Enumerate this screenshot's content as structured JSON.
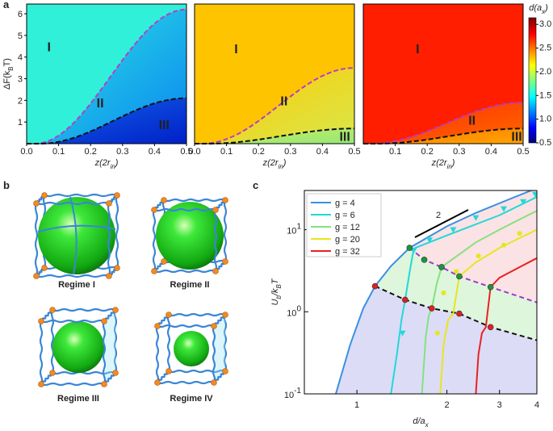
{
  "panel_a": {
    "label": "a",
    "ylabel": [
      "ΔF(k",
      "B",
      "T)"
    ],
    "xlabel": [
      "z(2r",
      "in",
      ")"
    ],
    "xlim": [
      0,
      0.5
    ],
    "ylim": [
      0,
      6.45
    ],
    "yticks": [
      1,
      2,
      3,
      4,
      5,
      6
    ],
    "plots": [
      {
        "xticks": [
          {
            "value": 0,
            "label": "0.0"
          },
          0.1,
          0.2,
          0.3,
          0.4,
          0.5
        ],
        "regimes": [
          "I",
          "II",
          "III"
        ]
      },
      {
        "xticks": [
          {
            "value": 0,
            "label": "0.0"
          },
          0.1,
          0.2,
          0.3,
          0.4,
          0.5
        ],
        "regimes": [
          "I",
          "II",
          "III"
        ]
      },
      {
        "xticks": [
          0.1,
          0.2,
          0.3,
          0.4,
          0.5
        ],
        "regimes": [
          "I",
          "II",
          "III"
        ]
      }
    ],
    "colorbar": {
      "title": [
        "d(a",
        "x",
        ")"
      ],
      "lim": [
        0.5,
        3.14
      ],
      "ticks": [
        {
          "value": 0.5,
          "label": "0.5"
        },
        {
          "value": 1,
          "label": "1.0"
        },
        {
          "value": 1.5,
          "label": "1.5"
        },
        {
          "value": 2,
          "label": "2.0"
        },
        {
          "value": 2.5,
          "label": "2.5"
        },
        {
          "value": 3,
          "label": "3.0"
        }
      ]
    }
  },
  "panel_b": {
    "label": "b",
    "regimes": [
      "Regime I",
      "Regime II",
      "Regime III",
      "Regime IV"
    ]
  },
  "panel_c": {
    "label": "c",
    "xlabel": [
      "d/a",
      "x"
    ],
    "ylabel": [
      "U",
      "b",
      "/k",
      "B",
      "T"
    ],
    "xlim": [
      0.667,
      4
    ],
    "ylim": [
      0.1,
      30
    ],
    "xticks": [
      1,
      2,
      3,
      4
    ],
    "yticks": [
      {
        "value": 0.1,
        "label": "10",
        "exp": "-1"
      },
      {
        "value": 1,
        "label": "10",
        "exp": "0"
      },
      {
        "value": 10,
        "label": "10",
        "exp": "1"
      }
    ],
    "slope_label": "2",
    "series": [
      {
        "name": "g = 4",
        "color": "#3b8fe2",
        "x": [
          0.85,
          0.95,
          1.05,
          1.15,
          1.3,
          1.5,
          2,
          2.5,
          3,
          4
        ],
        "y": [
          0.1,
          0.4,
          1.1,
          2.05,
          3.6,
          6,
          11,
          16,
          21,
          32
        ]
      },
      {
        "name": "g = 6",
        "color": "#22d8d8",
        "x": [
          1.3,
          1.36,
          1.41,
          1.45,
          1.5,
          1.55,
          2,
          3,
          4
        ],
        "y": [
          0.1,
          0.3,
          0.8,
          1.4,
          3,
          5.9,
          8.5,
          15,
          25
        ]
      },
      {
        "name": "g = 12",
        "color": "#84e27e",
        "x": [
          1.65,
          1.7,
          1.74,
          1.78,
          1.85,
          1.92,
          2.5,
          3,
          4
        ],
        "y": [
          0.1,
          0.5,
          0.9,
          1.1,
          2.2,
          3.5,
          7,
          10,
          17
        ]
      },
      {
        "name": "g = 20",
        "color": "#e6e620",
        "x": [
          1.9,
          1.95,
          2.02,
          2.1,
          2.2,
          2.5,
          3,
          4
        ],
        "y": [
          0.1,
          0.4,
          0.8,
          0.95,
          2.7,
          4,
          6,
          10
        ]
      },
      {
        "name": "g = 32",
        "color": "#e82222",
        "x": [
          2.5,
          2.55,
          2.62,
          2.7,
          2.8,
          3,
          4
        ],
        "y": [
          0.1,
          0.3,
          0.55,
          0.65,
          2,
          2.6,
          4.5
        ]
      }
    ],
    "boundary_lower": {
      "x": [
        1.15,
        1.45,
        1.78,
        2.2,
        2.8,
        4
      ],
      "y": [
        2.05,
        1.4,
        1.1,
        0.95,
        0.65,
        0.45
      ]
    },
    "boundary_upper": {
      "x": [
        1.5,
        1.68,
        1.92,
        2.2,
        2.8,
        4
      ],
      "y": [
        6,
        4.3,
        3.5,
        2.7,
        2,
        1.3
      ]
    },
    "transition_upper": {
      "x": [
        1.5,
        1.68,
        1.92,
        2.2,
        2.8
      ],
      "y": [
        6,
        4.3,
        3.5,
        2.7,
        2
      ]
    },
    "transition_lower": {
      "x": [
        1.15,
        1.45,
        1.78,
        2.2,
        2.8
      ],
      "y": [
        2.05,
        1.4,
        1.1,
        0.95,
        0.65
      ]
    },
    "sim_triangles": {
      "x": [
        1.42,
        1.55,
        1.75,
        2.1,
        2.5,
        3.1,
        3.6,
        3.95
      ],
      "y": [
        0.55,
        5.6,
        7.5,
        10,
        14,
        18,
        22,
        27
      ]
    },
    "sim_dots": {
      "x": [
        1.86,
        1.95,
        2.15,
        2.55,
        3.1,
        3.5
      ],
      "y": [
        0.55,
        1.7,
        3.1,
        4.8,
        6.5,
        9
      ]
    }
  }
}
